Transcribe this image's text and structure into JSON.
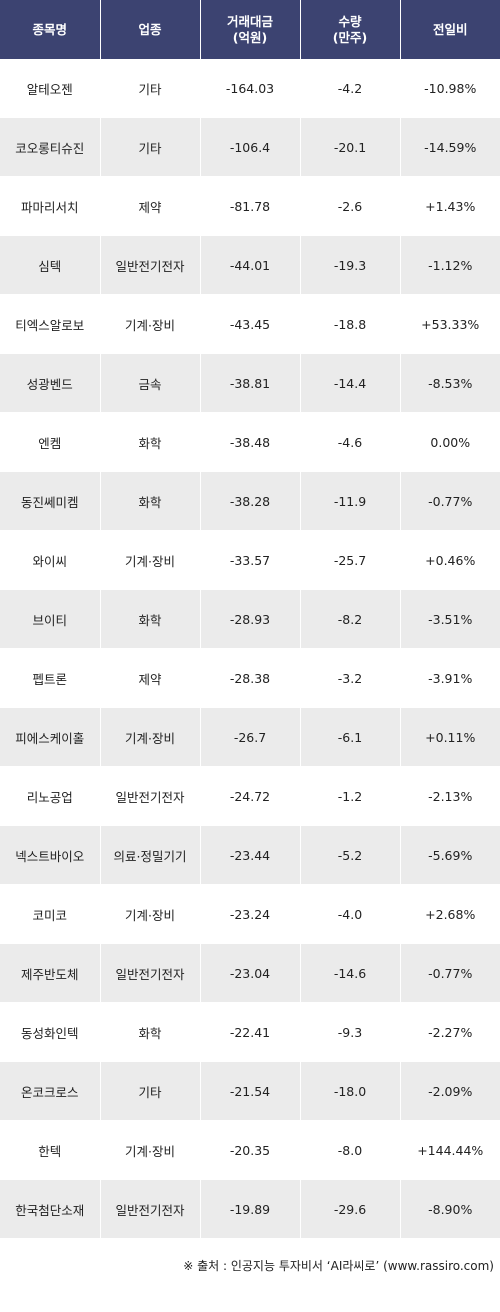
{
  "headers": {
    "name": "종목명",
    "sector": "업종",
    "amount_line1": "거래대금",
    "amount_line2": "(억원)",
    "volume_line1": "수량",
    "volume_line2": "(만주)",
    "change": "전일비"
  },
  "rows": [
    {
      "name": "알테오젠",
      "sector": "기타",
      "amount": "-164.03",
      "volume": "-4.2",
      "change": "-10.98%",
      "dir": "neg"
    },
    {
      "name": "코오롱티슈진",
      "sector": "기타",
      "amount": "-106.4",
      "volume": "-20.1",
      "change": "-14.59%",
      "dir": "neg"
    },
    {
      "name": "파마리서치",
      "sector": "제약",
      "amount": "-81.78",
      "volume": "-2.6",
      "change": "+1.43%",
      "dir": "pos"
    },
    {
      "name": "심텍",
      "sector": "일반전기전자",
      "amount": "-44.01",
      "volume": "-19.3",
      "change": "-1.12%",
      "dir": "neg"
    },
    {
      "name": "티엑스알로보",
      "sector": "기계·장비",
      "amount": "-43.45",
      "volume": "-18.8",
      "change": "+53.33%",
      "dir": "pos"
    },
    {
      "name": "성광벤드",
      "sector": "금속",
      "amount": "-38.81",
      "volume": "-14.4",
      "change": "-8.53%",
      "dir": "neg"
    },
    {
      "name": "엔켐",
      "sector": "화학",
      "amount": "-38.48",
      "volume": "-4.6",
      "change": "0.00%",
      "dir": "zero"
    },
    {
      "name": "동진쎄미켐",
      "sector": "화학",
      "amount": "-38.28",
      "volume": "-11.9",
      "change": "-0.77%",
      "dir": "neg"
    },
    {
      "name": "와이씨",
      "sector": "기계·장비",
      "amount": "-33.57",
      "volume": "-25.7",
      "change": "+0.46%",
      "dir": "pos"
    },
    {
      "name": "브이티",
      "sector": "화학",
      "amount": "-28.93",
      "volume": "-8.2",
      "change": "-3.51%",
      "dir": "neg"
    },
    {
      "name": "펩트론",
      "sector": "제약",
      "amount": "-28.38",
      "volume": "-3.2",
      "change": "-3.91%",
      "dir": "neg"
    },
    {
      "name": "피에스케이홀",
      "sector": "기계·장비",
      "amount": "-26.7",
      "volume": "-6.1",
      "change": "+0.11%",
      "dir": "pos"
    },
    {
      "name": "리노공업",
      "sector": "일반전기전자",
      "amount": "-24.72",
      "volume": "-1.2",
      "change": "-2.13%",
      "dir": "neg"
    },
    {
      "name": "넥스트바이오",
      "sector": "의료·정밀기기",
      "amount": "-23.44",
      "volume": "-5.2",
      "change": "-5.69%",
      "dir": "neg"
    },
    {
      "name": "코미코",
      "sector": "기계·장비",
      "amount": "-23.24",
      "volume": "-4.0",
      "change": "+2.68%",
      "dir": "pos"
    },
    {
      "name": "제주반도체",
      "sector": "일반전기전자",
      "amount": "-23.04",
      "volume": "-14.6",
      "change": "-0.77%",
      "dir": "neg"
    },
    {
      "name": "동성화인텍",
      "sector": "화학",
      "amount": "-22.41",
      "volume": "-9.3",
      "change": "-2.27%",
      "dir": "neg"
    },
    {
      "name": "온코크로스",
      "sector": "기타",
      "amount": "-21.54",
      "volume": "-18.0",
      "change": "-2.09%",
      "dir": "neg"
    },
    {
      "name": "한텍",
      "sector": "기계·장비",
      "amount": "-20.35",
      "volume": "-8.0",
      "change": "+144.44%",
      "dir": "pos"
    },
    {
      "name": "한국첨단소재",
      "sector": "일반전기전자",
      "amount": "-19.89",
      "volume": "-29.6",
      "change": "-8.90%",
      "dir": "neg"
    }
  ],
  "source": "※ 출처 : 인공지능 투자비서 ‘AI라씨로’ (www.rassiro.com)",
  "colors": {
    "header_bg": "#3c4371",
    "row_alt_bg": "#ebebeb",
    "positive": "#d4161c",
    "negative": "#1a1aa8"
  }
}
